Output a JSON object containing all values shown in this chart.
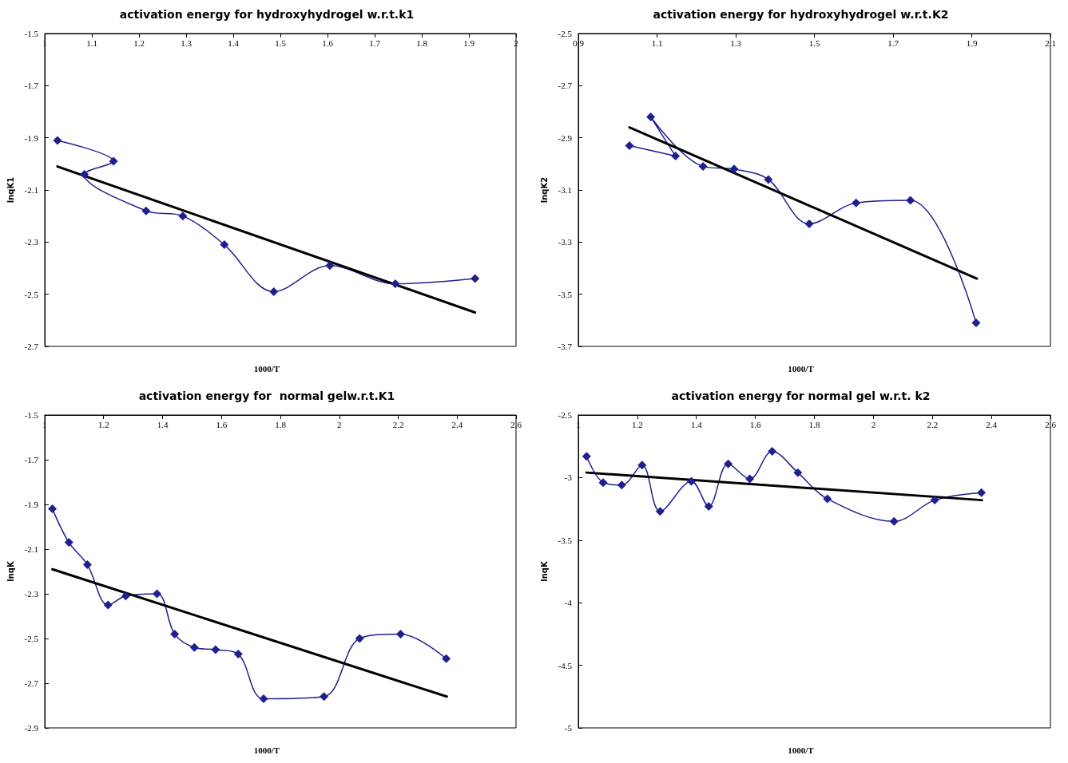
{
  "chart_data": [
    {
      "type": "line",
      "title": "activation energy for hydroxyhydrogel w.r.t.k1",
      "xlabel": "1000/T",
      "ylabel": "lnqK1",
      "xlim": [
        1,
        2
      ],
      "xticks": [
        1,
        1.1,
        1.2,
        1.3,
        1.4,
        1.5,
        1.6,
        1.7,
        1.8,
        1.9,
        2
      ],
      "ylim": [
        -2.7,
        -1.5
      ],
      "yticks": [
        -2.7,
        -2.5,
        -2.3,
        -2.1,
        -1.9,
        -1.7,
        -1.5
      ],
      "grid": false,
      "series": [
        {
          "color": "#1f1f8f",
          "marker": "diamond",
          "x": [
            1.027,
            1.146,
            1.084,
            1.215,
            1.293,
            1.381,
            1.486,
            1.605,
            1.744,
            1.913
          ],
          "values": [
            -1.91,
            -1.99,
            -2.04,
            -2.18,
            -2.2,
            -2.31,
            -2.49,
            -2.39,
            -2.46,
            -2.44
          ]
        },
        {
          "color": "#000000",
          "marker": "none",
          "x": [
            1.027,
            1.913
          ],
          "values": [
            -2.01,
            -2.57
          ]
        }
      ]
    },
    {
      "type": "line",
      "title": "activation energy for hydroxyhydrogel w.r.t.K2",
      "xlabel": "1000/T",
      "ylabel": "lnqK2",
      "xlim": [
        0.9,
        2.1
      ],
      "xticks": [
        0.9,
        1.1,
        1.3,
        1.5,
        1.7,
        1.9,
        2.1
      ],
      "ylim": [
        -3.7,
        -2.5
      ],
      "yticks": [
        -3.7,
        -3.5,
        -3.3,
        -3.1,
        -2.9,
        -2.7,
        -2.5
      ],
      "grid": false,
      "series": [
        {
          "color": "#1f1f8f",
          "marker": "diamond",
          "x": [
            1.03,
            1.147,
            1.084,
            1.217,
            1.296,
            1.383,
            1.487,
            1.606,
            1.744,
            1.911
          ],
          "values": [
            -2.93,
            -2.97,
            -2.82,
            -3.01,
            -3.02,
            -3.06,
            -3.23,
            -3.15,
            -3.14,
            -3.61
          ]
        },
        {
          "color": "#000000",
          "marker": "none",
          "x": [
            1.03,
            1.913
          ],
          "values": [
            -2.86,
            -3.44
          ]
        }
      ]
    },
    {
      "type": "line",
      "title": "activation energy for  normal gelw.r.t.K1",
      "xlabel": "1000/T",
      "ylabel": "lnqK",
      "xlim": [
        1,
        2.6
      ],
      "xticks": [
        1,
        1.2,
        1.4,
        1.6,
        1.8,
        2,
        2.2,
        2.4,
        2.6
      ],
      "ylim": [
        -2.9,
        -1.5
      ],
      "yticks": [
        -2.9,
        -2.7,
        -2.5,
        -2.3,
        -2.1,
        -1.9,
        -1.7,
        -1.5
      ],
      "grid": false,
      "series": [
        {
          "color": "#1f1f8f",
          "marker": "diamond",
          "x": [
            1.026,
            1.082,
            1.145,
            1.215,
            1.275,
            1.381,
            1.441,
            1.508,
            1.58,
            1.657,
            1.743,
            1.948,
            2.069,
            2.208,
            2.363
          ],
          "values": [
            -1.92,
            -2.07,
            -2.17,
            -2.35,
            -2.31,
            -2.3,
            -2.48,
            -2.54,
            -2.55,
            -2.57,
            -2.77,
            -2.76,
            -2.5,
            -2.48,
            -2.59
          ]
        },
        {
          "color": "#000000",
          "marker": "none",
          "x": [
            1.026,
            2.365
          ],
          "values": [
            -2.19,
            -2.76
          ]
        }
      ]
    },
    {
      "type": "line",
      "title": "activation energy for normal gel w.r.t. k2",
      "xlabel": "1000/T",
      "ylabel": "lnqK",
      "xlim": [
        1,
        2.6
      ],
      "xticks": [
        1,
        1.2,
        1.4,
        1.6,
        1.8,
        2,
        2.2,
        2.4,
        2.6
      ],
      "ylim": [
        -5,
        -2.5
      ],
      "yticks": [
        -5,
        -4.5,
        -4,
        -3.5,
        -3,
        -2.5
      ],
      "grid": false,
      "series": [
        {
          "color": "#1f1f8f",
          "marker": "diamond",
          "x": [
            1.028,
            1.084,
            1.147,
            1.216,
            1.277,
            1.383,
            1.442,
            1.508,
            1.581,
            1.657,
            1.744,
            1.844,
            2.07,
            2.208,
            2.366
          ],
          "values": [
            -2.83,
            -3.04,
            -3.06,
            -2.9,
            -3.27,
            -3.03,
            -3.23,
            -2.89,
            -3.01,
            -2.79,
            -2.96,
            -3.17,
            -3.35,
            -3.18,
            -3.12
          ]
        },
        {
          "color": "#000000",
          "marker": "none",
          "x": [
            1.028,
            2.368
          ],
          "values": [
            -2.96,
            -3.18
          ]
        }
      ]
    }
  ]
}
